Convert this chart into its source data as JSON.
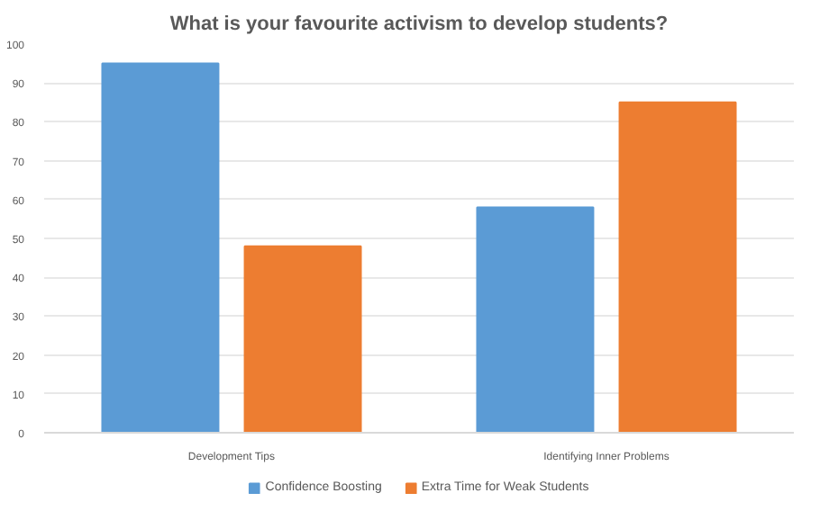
{
  "chart_data": {
    "type": "bar",
    "title": "What is your favourite activism to develop students?",
    "categories": [
      "Development Tips",
      "Identifying Inner Problems"
    ],
    "series": [
      {
        "name": "Confidence Boosting",
        "color": "#5b9bd5",
        "values": [
          95,
          58
        ]
      },
      {
        "name": "Extra Time for Weak Students",
        "color": "#ed7d31",
        "values": [
          48,
          85
        ]
      }
    ],
    "ylim": [
      0,
      100
    ],
    "yticks": [
      0,
      10,
      20,
      30,
      40,
      50,
      60,
      70,
      80,
      90,
      100
    ],
    "grid": "y",
    "legend": "bottom"
  }
}
